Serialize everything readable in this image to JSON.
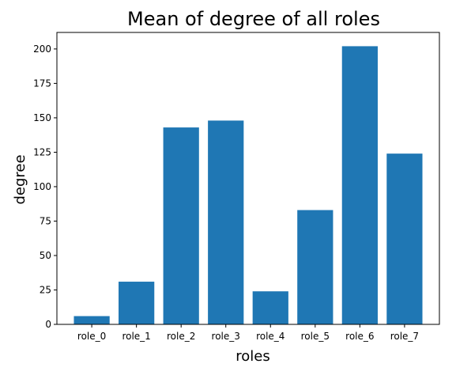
{
  "chart_data": {
    "type": "bar",
    "title": "Mean of degree of all roles",
    "xlabel": "roles",
    "ylabel": "degree",
    "categories": [
      "role_0",
      "role_1",
      "role_2",
      "role_3",
      "role_4",
      "role_5",
      "role_6",
      "role_7"
    ],
    "values": [
      6,
      31,
      143,
      148,
      24,
      83,
      202,
      124
    ],
    "ylim": [
      0,
      212
    ],
    "yticks": [
      0,
      25,
      50,
      75,
      100,
      125,
      150,
      175,
      200
    ],
    "bar_color": "#1f77b4",
    "grid": false,
    "legend": false
  }
}
